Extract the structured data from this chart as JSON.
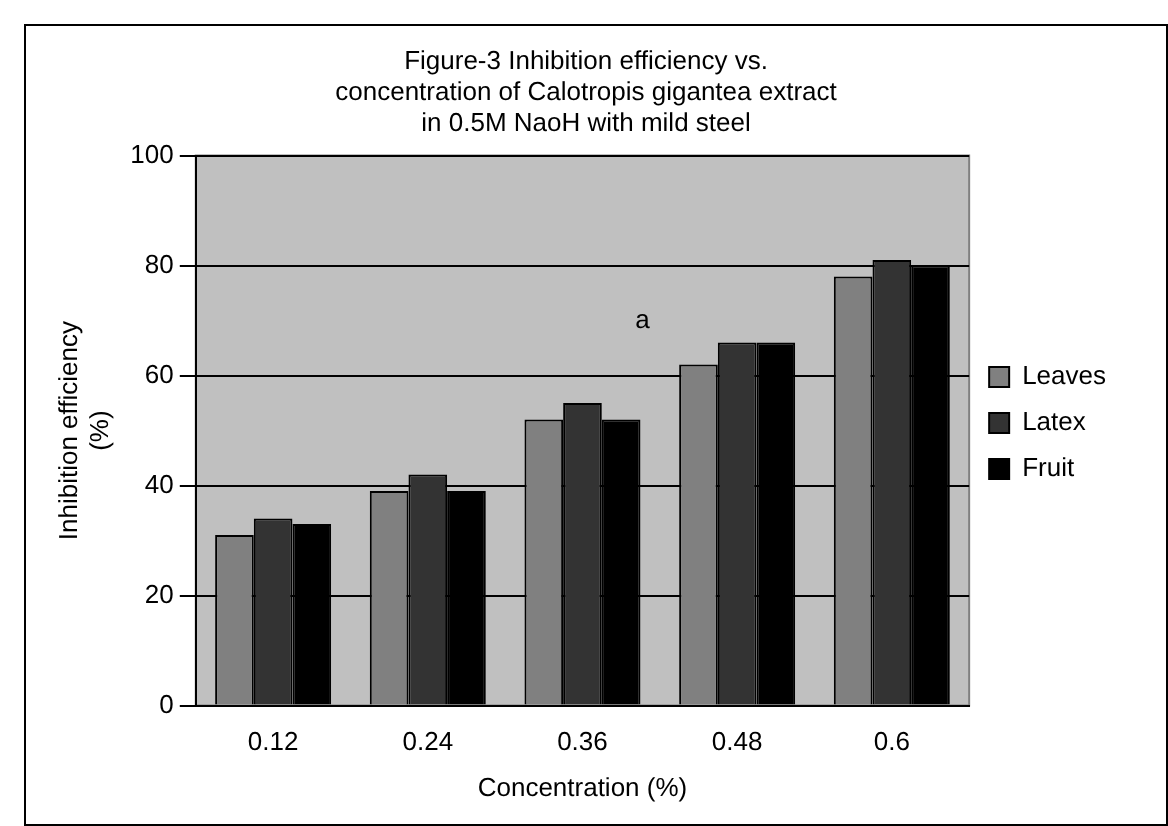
{
  "chart_data": {
    "type": "bar",
    "title": "Figure-3 Inhibition efficiency vs.\nconcentration of Calotropis gigantea extract\nin 0.5M NaoH with mild steel",
    "xlabel": "Concentration (%)",
    "ylabel": "Inhibition efficiency\n(%)",
    "categories": [
      "0.12",
      "0.24",
      "0.36",
      "0.48",
      "0.6"
    ],
    "series": [
      {
        "name": "Leaves",
        "color": "#808080",
        "values": [
          31,
          39,
          52,
          62,
          78
        ]
      },
      {
        "name": "Latex",
        "color": "#333333",
        "values": [
          34,
          42,
          55,
          66,
          81
        ]
      },
      {
        "name": "Fruit",
        "color": "#000000",
        "values": [
          33,
          39,
          52,
          66,
          80
        ]
      }
    ],
    "ylim": [
      0,
      100
    ],
    "yticks": [
      0,
      20,
      40,
      60,
      80,
      100
    ],
    "grid": "y",
    "legend": "right",
    "annotations": [
      "a"
    ]
  }
}
